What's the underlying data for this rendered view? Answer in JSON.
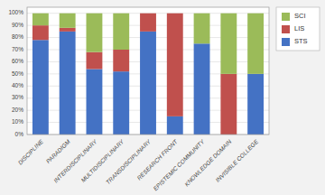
{
  "chart_data": {
    "type": "bar",
    "stacked": true,
    "categories": [
      "DISCIPLINE",
      "PARADIGM",
      "INTERDISCIPLINARY",
      "MULTIDISCIPLINARY",
      "TRANSDISCIPLINARY",
      "RESEARCH FRONT",
      "EPISTEMIC COMMUNITY",
      "KNOWLEDGE DOMAIN",
      "INVISIBLE COLLEGE"
    ],
    "series": [
      {
        "name": "STS",
        "color": "#4472C4",
        "values": [
          78,
          85,
          54,
          52,
          85,
          15,
          75,
          0,
          50
        ]
      },
      {
        "name": "LIS",
        "color": "#C0504D",
        "values": [
          12,
          3,
          14,
          18,
          15,
          85,
          0,
          50,
          0
        ]
      },
      {
        "name": "SCI",
        "color": "#9BBB59",
        "values": [
          10,
          12,
          32,
          30,
          0,
          0,
          25,
          50,
          50
        ]
      }
    ],
    "ylim": [
      0,
      105
    ],
    "yticks": [
      {
        "value": 0,
        "label": "0%"
      },
      {
        "value": 10,
        "label": "10%"
      },
      {
        "value": 20,
        "label": "20%"
      },
      {
        "value": 30,
        "label": "30%"
      },
      {
        "value": 40,
        "label": "40%"
      },
      {
        "value": 50,
        "label": "50%"
      },
      {
        "value": 60,
        "label": "60%"
      },
      {
        "value": 70,
        "label": "70%"
      },
      {
        "value": 80,
        "label": "80%"
      },
      {
        "value": 90,
        "label": "90%"
      },
      {
        "value": 100,
        "label": "100%"
      }
    ],
    "grid": true,
    "legend": "right"
  }
}
